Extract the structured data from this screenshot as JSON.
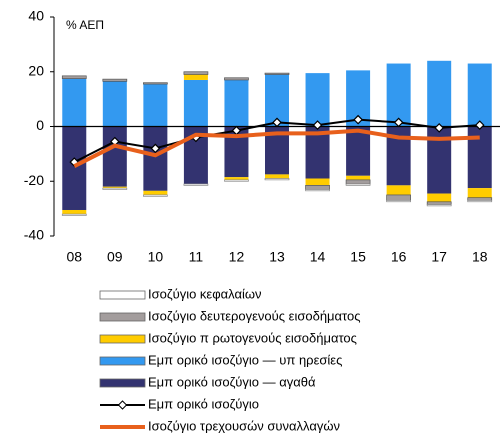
{
  "chart_data": {
    "type": "stacked_bar_line",
    "y_label": "% ΑΕΠ",
    "categories": [
      "08",
      "09",
      "10",
      "11",
      "12",
      "13",
      "14",
      "15",
      "16",
      "17",
      "18"
    ],
    "ylim": [
      -40,
      40
    ],
    "yticks": [
      -40,
      -20,
      0,
      20,
      40
    ],
    "series": [
      {
        "name": "Εμπ ορικό ισοζύγιο — αγαθά",
        "color": "#333370",
        "kind": "bar",
        "values": [
          -30.5,
          -22,
          -23.5,
          -21,
          -18.5,
          -17.5,
          -19,
          -18,
          -21.5,
          -24.5,
          -22.5
        ]
      },
      {
        "name": "Εμπ ορικό ισοζύγιο — υπ ηρεσίες",
        "color": "#3399f0",
        "kind": "bar",
        "values": [
          17.5,
          16.5,
          15.5,
          17,
          17,
          19,
          19.5,
          20.5,
          23,
          24,
          23
        ]
      },
      {
        "name": "Ισοζύγιο π ρωτογενούς εισοδήματος",
        "color": "#ffcc00",
        "kind": "bar",
        "values": [
          -1.5,
          -0.5,
          -1.5,
          2,
          -1,
          -1.5,
          -2.5,
          -1.5,
          -3.5,
          -3,
          -3.5
        ]
      },
      {
        "name": "Ισοζύγιο δευτερογενούς εισοδήματος",
        "color": "#a39d9d",
        "kind": "bar",
        "values": [
          1,
          0.8,
          0.5,
          1,
          0.8,
          0.5,
          -1.5,
          -1.5,
          -2,
          -1,
          -1
        ]
      },
      {
        "name": "Ισοζύγιο κεφαλαίων",
        "color": "#ffffff",
        "kind": "bar",
        "values": [
          -0.5,
          -0.5,
          -0.5,
          -0.5,
          -0.5,
          -0.5,
          -0.5,
          -0.5,
          -0.5,
          -0.5,
          -0.5
        ]
      },
      {
        "name": "Εμπ ορικό ισοζύγιο",
        "color": "#000000",
        "kind": "line",
        "values": [
          -13,
          -5.5,
          -8,
          -4,
          -1.5,
          1.5,
          0.5,
          2.5,
          1.5,
          -0.5,
          0.5
        ]
      },
      {
        "name": "Ισοζύγιο τρεχουσών συναλλαγών",
        "color": "#e8601c",
        "kind": "line",
        "values": [
          -14.5,
          -7,
          -10.5,
          -3,
          -3.5,
          -2.5,
          -2.5,
          -1.5,
          -4,
          -4.5,
          -4
        ]
      }
    ]
  }
}
